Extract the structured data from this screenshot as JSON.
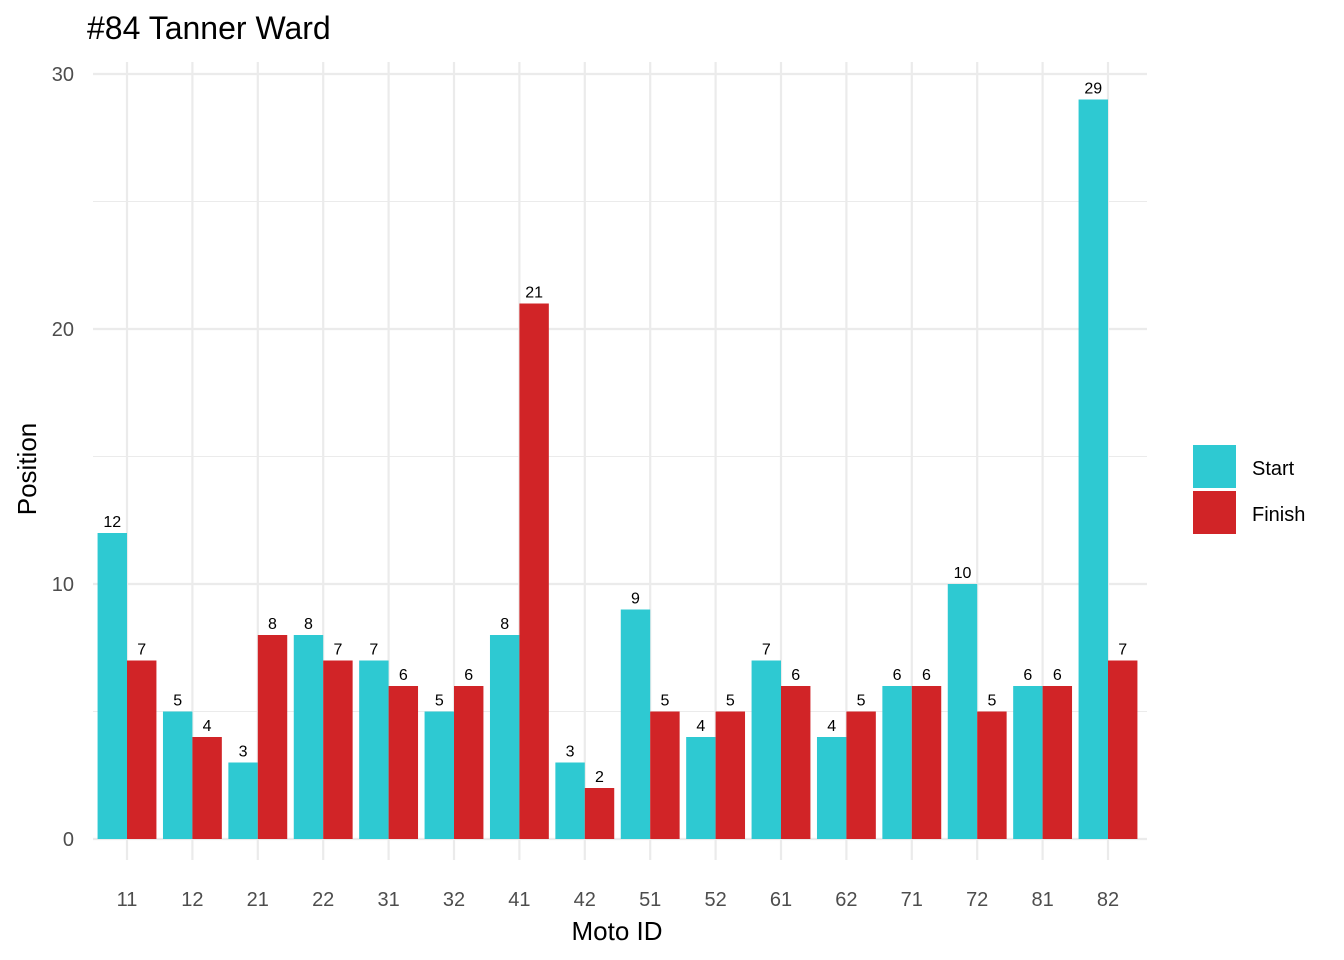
{
  "chart_data": {
    "type": "bar",
    "title": "#84 Tanner Ward",
    "xlabel": "Moto ID",
    "ylabel": "Position",
    "categories": [
      "11",
      "12",
      "21",
      "22",
      "31",
      "32",
      "41",
      "42",
      "51",
      "52",
      "61",
      "62",
      "71",
      "72",
      "81",
      "82"
    ],
    "series": [
      {
        "name": "Start",
        "color": "#2ec9d2",
        "values": [
          12,
          5,
          3,
          8,
          7,
          5,
          8,
          3,
          9,
          4,
          7,
          4,
          6,
          10,
          6,
          29
        ]
      },
      {
        "name": "Finish",
        "color": "#d12427",
        "values": [
          7,
          4,
          8,
          7,
          6,
          6,
          21,
          2,
          5,
          5,
          6,
          5,
          6,
          5,
          6,
          7
        ]
      }
    ],
    "ylim": [
      0,
      30
    ],
    "yticks": [
      0,
      10,
      20,
      30
    ],
    "grid": true,
    "legend_position": "right",
    "data_labels": true
  }
}
